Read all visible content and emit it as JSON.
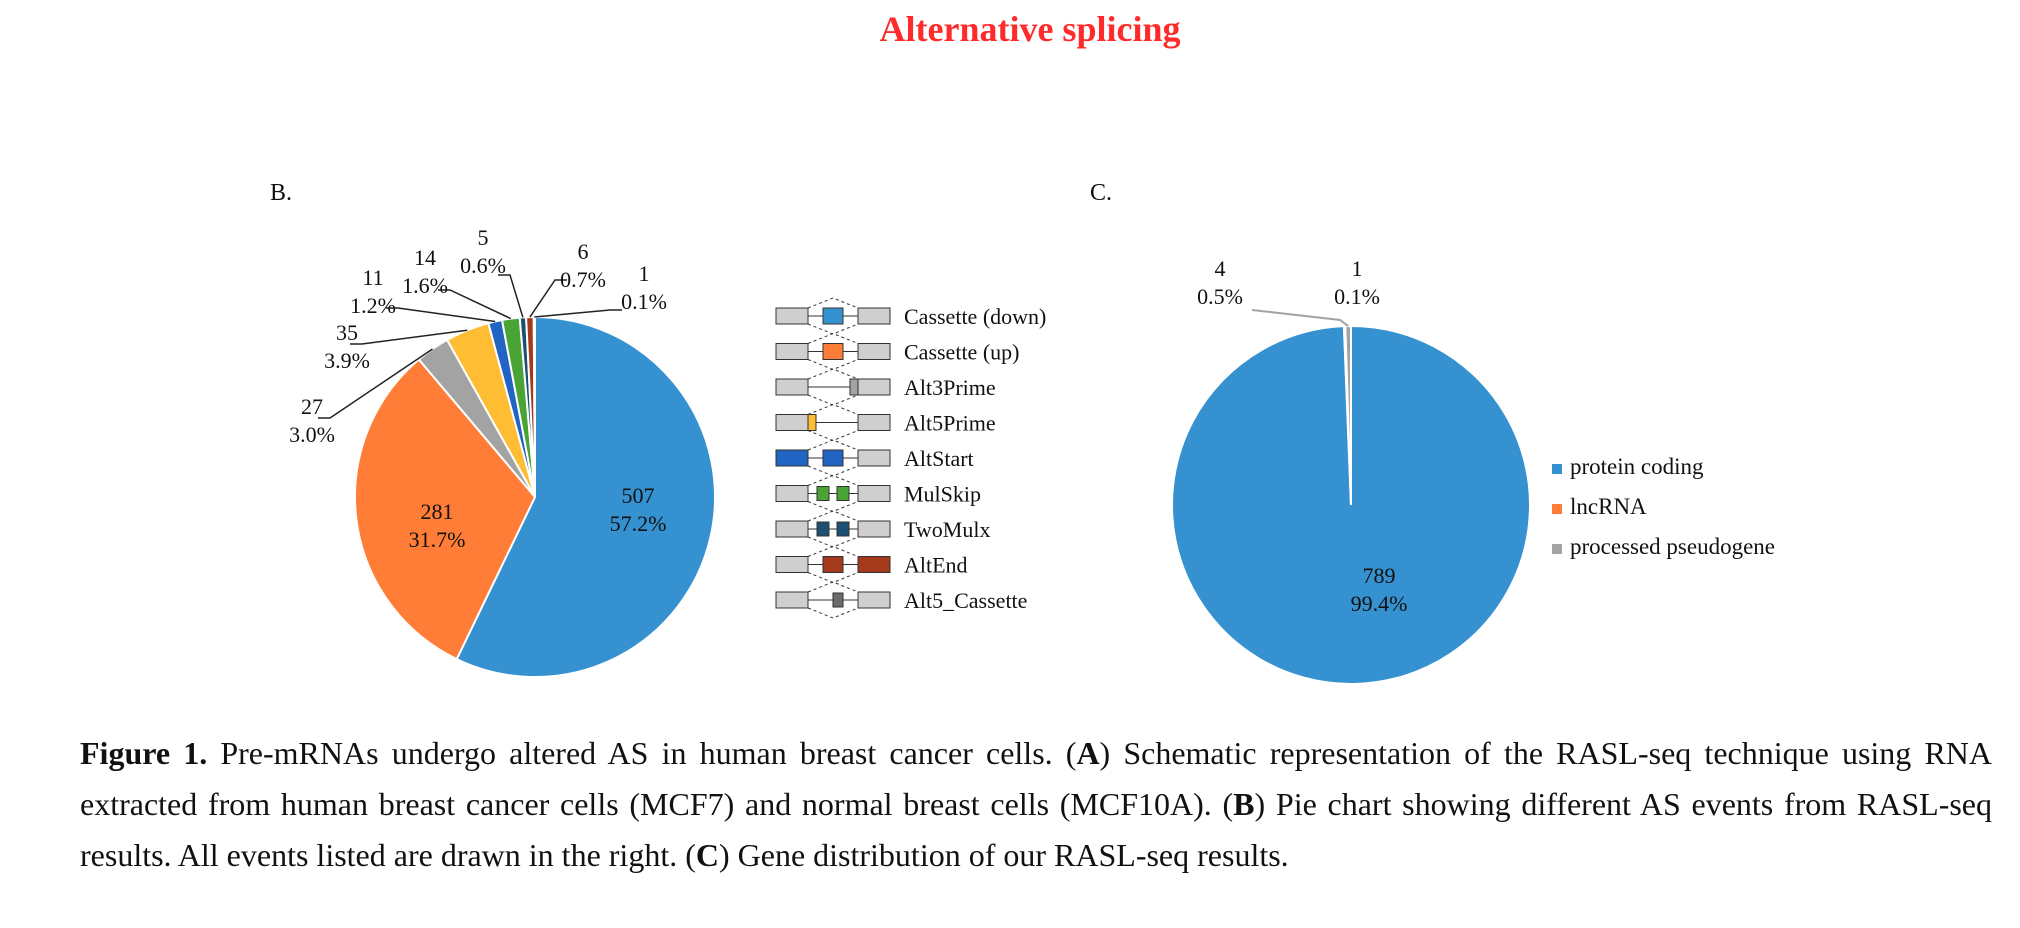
{
  "title": "Alternative splicing",
  "panels": {
    "b": "B.",
    "c": "C."
  },
  "colors": {
    "blue": "#3591d0",
    "orange": "#ff7d36",
    "gray": "#a3a3a3",
    "yellow": "#ffbd33",
    "darkblue": "#2164c3",
    "green": "#4aa335",
    "navy": "#1d4f73",
    "darkred": "#a5391b",
    "darkgray": "#6b6b6b"
  },
  "chart_data": [
    {
      "type": "pie",
      "panel": "B.",
      "slices": [
        {
          "name": "Cassette (down)",
          "count": "507",
          "percent": "57.2%",
          "value": 507,
          "color": "#3591d0"
        },
        {
          "name": "Cassette (up)",
          "count": "281",
          "percent": "31.7%",
          "value": 281,
          "color": "#ff7d36"
        },
        {
          "name": "Alt3Prime",
          "count": "27",
          "percent": "3.0%",
          "value": 27,
          "color": "#a3a3a3"
        },
        {
          "name": "Alt5Prime",
          "count": "35",
          "percent": "3.9%",
          "value": 35,
          "color": "#ffbd33"
        },
        {
          "name": "AltStart",
          "count": "11",
          "percent": "1.2%",
          "value": 11,
          "color": "#2164c3"
        },
        {
          "name": "MulSkip",
          "count": "14",
          "percent": "1.6%",
          "value": 14,
          "color": "#4aa335"
        },
        {
          "name": "TwoMulx",
          "count": "5",
          "percent": "0.6%",
          "value": 5,
          "color": "#1d4f73"
        },
        {
          "name": "AltEnd",
          "count": "6",
          "percent": "0.7%",
          "value": 6,
          "color": "#a5391b"
        },
        {
          "name": "Alt5_Cassette",
          "count": "1",
          "percent": "0.1%",
          "value": 1,
          "color": "#6b6b6b"
        }
      ]
    },
    {
      "type": "pie",
      "panel": "C.",
      "slices": [
        {
          "name": "protein coding",
          "count": "789",
          "percent": "99.4%",
          "value": 789,
          "color": "#3591d0"
        },
        {
          "name": "lncRNA",
          "count": "1",
          "percent": "0.1%",
          "value": 1,
          "color": "#ff7d36"
        },
        {
          "name": "processed pseudogene",
          "count": "4",
          "percent": "0.5%",
          "value": 4,
          "color": "#a3a3a3"
        }
      ]
    }
  ],
  "caption": {
    "fig": "Figure 1.",
    "t1": " Pre-mRNAs undergo altered AS in human breast cancer cells. (",
    "a": "A",
    "t2": ") Schematic representation of the RASL-seq technique using RNA extracted from human breast cancer cells (MCF7) and normal breast cells (MCF10A). (",
    "b": "B",
    "t3": ") Pie chart showing different AS events from RASL-seq results. All events listed are drawn in the right. (",
    "c": "C",
    "t4": ") Gene distribution of our RASL-seq results."
  }
}
